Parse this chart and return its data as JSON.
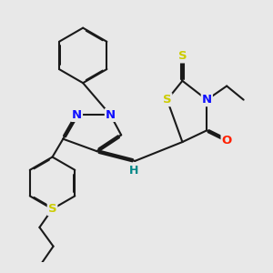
{
  "bg_color": "#e8e8e8",
  "bond_color": "#1a1a1a",
  "bond_width": 1.5,
  "dbo": 0.035,
  "atom_colors": {
    "N": "#1010ff",
    "S": "#cccc00",
    "O": "#ff2000",
    "H": "#008888",
    "C": "#1a1a1a"
  },
  "font_size": 9.5,
  "fig_width": 3.0,
  "fig_height": 3.0,
  "dpi": 100
}
